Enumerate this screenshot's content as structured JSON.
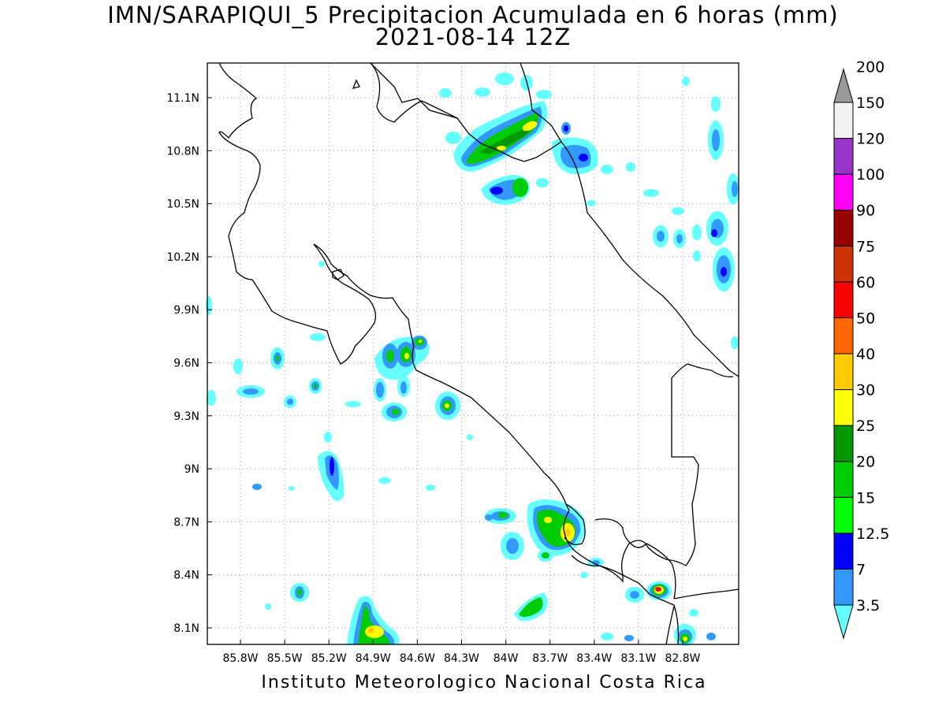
{
  "title": {
    "line1": "IMN/SARAPIQUI_5 Precipitacion Acumulada en 6 horas (mm)",
    "line2": "2021-08-14 12Z"
  },
  "footer": "Instituto Meteorologico Nacional Costa Rica",
  "axes": {
    "lat_labels": [
      "11.1N",
      "10.8N",
      "10.5N",
      "10.2N",
      "9.9N",
      "9.6N",
      "9.3N",
      "9N",
      "8.7N",
      "8.4N",
      "8.1N"
    ],
    "lon_labels": [
      "85.8W",
      "85.5W",
      "85.2W",
      "84.9W",
      "84.6W",
      "84.3W",
      "84W",
      "83.7W",
      "83.4W",
      "83.1W",
      "82.8W"
    ],
    "lat_values": [
      11.1,
      10.8,
      10.5,
      10.2,
      9.9,
      9.6,
      9.3,
      9.0,
      8.7,
      8.4,
      8.1
    ],
    "lon_values": [
      -85.8,
      -85.5,
      -85.2,
      -84.9,
      -84.6,
      -84.3,
      -84.0,
      -83.7,
      -83.4,
      -83.1,
      -82.8
    ],
    "grid": "dotted"
  },
  "colorbar": {
    "labels": [
      "3.5",
      "7",
      "12.5",
      "15",
      "20",
      "25",
      "30",
      "40",
      "50",
      "60",
      "75",
      "90",
      "100",
      "120",
      "150",
      "200"
    ],
    "colors": [
      "#66ffff",
      "#3399ff",
      "#0000ff",
      "#00ff00",
      "#00cc00",
      "#009900",
      "#ffff00",
      "#ffcc00",
      "#ff6600",
      "#ff0000",
      "#cc3300",
      "#990000",
      "#ff00ff",
      "#9933cc",
      "#f2f2f2",
      "#999999"
    ]
  }
}
